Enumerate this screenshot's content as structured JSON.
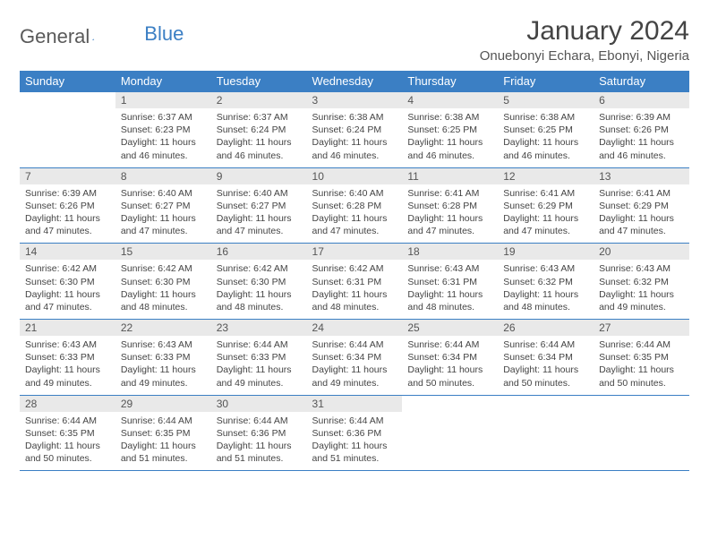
{
  "logo": {
    "text1": "General",
    "text2": "Blue"
  },
  "title": "January 2024",
  "location": "Onuebonyi Echara, Ebonyi, Nigeria",
  "colors": {
    "header_bg": "#3b7fc4",
    "header_text": "#ffffff",
    "cell_rule": "#3b7fc4",
    "daynum_bg": "#e9e9e9",
    "text": "#444444"
  },
  "weekdays": [
    "Sunday",
    "Monday",
    "Tuesday",
    "Wednesday",
    "Thursday",
    "Friday",
    "Saturday"
  ],
  "start_offset": 1,
  "days": [
    {
      "n": 1,
      "sunrise": "6:37 AM",
      "sunset": "6:23 PM",
      "daylight": "11 hours and 46 minutes."
    },
    {
      "n": 2,
      "sunrise": "6:37 AM",
      "sunset": "6:24 PM",
      "daylight": "11 hours and 46 minutes."
    },
    {
      "n": 3,
      "sunrise": "6:38 AM",
      "sunset": "6:24 PM",
      "daylight": "11 hours and 46 minutes."
    },
    {
      "n": 4,
      "sunrise": "6:38 AM",
      "sunset": "6:25 PM",
      "daylight": "11 hours and 46 minutes."
    },
    {
      "n": 5,
      "sunrise": "6:38 AM",
      "sunset": "6:25 PM",
      "daylight": "11 hours and 46 minutes."
    },
    {
      "n": 6,
      "sunrise": "6:39 AM",
      "sunset": "6:26 PM",
      "daylight": "11 hours and 46 minutes."
    },
    {
      "n": 7,
      "sunrise": "6:39 AM",
      "sunset": "6:26 PM",
      "daylight": "11 hours and 47 minutes."
    },
    {
      "n": 8,
      "sunrise": "6:40 AM",
      "sunset": "6:27 PM",
      "daylight": "11 hours and 47 minutes."
    },
    {
      "n": 9,
      "sunrise": "6:40 AM",
      "sunset": "6:27 PM",
      "daylight": "11 hours and 47 minutes."
    },
    {
      "n": 10,
      "sunrise": "6:40 AM",
      "sunset": "6:28 PM",
      "daylight": "11 hours and 47 minutes."
    },
    {
      "n": 11,
      "sunrise": "6:41 AM",
      "sunset": "6:28 PM",
      "daylight": "11 hours and 47 minutes."
    },
    {
      "n": 12,
      "sunrise": "6:41 AM",
      "sunset": "6:29 PM",
      "daylight": "11 hours and 47 minutes."
    },
    {
      "n": 13,
      "sunrise": "6:41 AM",
      "sunset": "6:29 PM",
      "daylight": "11 hours and 47 minutes."
    },
    {
      "n": 14,
      "sunrise": "6:42 AM",
      "sunset": "6:30 PM",
      "daylight": "11 hours and 47 minutes."
    },
    {
      "n": 15,
      "sunrise": "6:42 AM",
      "sunset": "6:30 PM",
      "daylight": "11 hours and 48 minutes."
    },
    {
      "n": 16,
      "sunrise": "6:42 AM",
      "sunset": "6:30 PM",
      "daylight": "11 hours and 48 minutes."
    },
    {
      "n": 17,
      "sunrise": "6:42 AM",
      "sunset": "6:31 PM",
      "daylight": "11 hours and 48 minutes."
    },
    {
      "n": 18,
      "sunrise": "6:43 AM",
      "sunset": "6:31 PM",
      "daylight": "11 hours and 48 minutes."
    },
    {
      "n": 19,
      "sunrise": "6:43 AM",
      "sunset": "6:32 PM",
      "daylight": "11 hours and 48 minutes."
    },
    {
      "n": 20,
      "sunrise": "6:43 AM",
      "sunset": "6:32 PM",
      "daylight": "11 hours and 49 minutes."
    },
    {
      "n": 21,
      "sunrise": "6:43 AM",
      "sunset": "6:33 PM",
      "daylight": "11 hours and 49 minutes."
    },
    {
      "n": 22,
      "sunrise": "6:43 AM",
      "sunset": "6:33 PM",
      "daylight": "11 hours and 49 minutes."
    },
    {
      "n": 23,
      "sunrise": "6:44 AM",
      "sunset": "6:33 PM",
      "daylight": "11 hours and 49 minutes."
    },
    {
      "n": 24,
      "sunrise": "6:44 AM",
      "sunset": "6:34 PM",
      "daylight": "11 hours and 49 minutes."
    },
    {
      "n": 25,
      "sunrise": "6:44 AM",
      "sunset": "6:34 PM",
      "daylight": "11 hours and 50 minutes."
    },
    {
      "n": 26,
      "sunrise": "6:44 AM",
      "sunset": "6:34 PM",
      "daylight": "11 hours and 50 minutes."
    },
    {
      "n": 27,
      "sunrise": "6:44 AM",
      "sunset": "6:35 PM",
      "daylight": "11 hours and 50 minutes."
    },
    {
      "n": 28,
      "sunrise": "6:44 AM",
      "sunset": "6:35 PM",
      "daylight": "11 hours and 50 minutes."
    },
    {
      "n": 29,
      "sunrise": "6:44 AM",
      "sunset": "6:35 PM",
      "daylight": "11 hours and 51 minutes."
    },
    {
      "n": 30,
      "sunrise": "6:44 AM",
      "sunset": "6:36 PM",
      "daylight": "11 hours and 51 minutes."
    },
    {
      "n": 31,
      "sunrise": "6:44 AM",
      "sunset": "6:36 PM",
      "daylight": "11 hours and 51 minutes."
    }
  ],
  "labels": {
    "sunrise": "Sunrise:",
    "sunset": "Sunset:",
    "daylight": "Daylight:"
  }
}
